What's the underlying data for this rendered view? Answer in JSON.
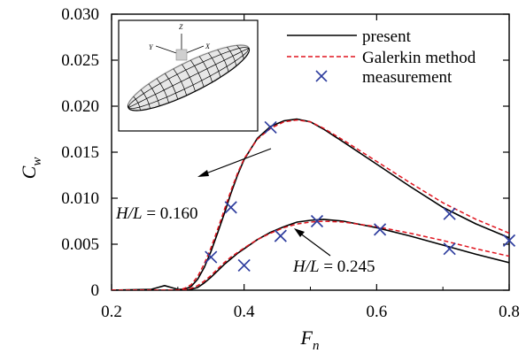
{
  "chart_data": {
    "type": "line",
    "title": "",
    "xlabel": "F",
    "xlabel_sub": "n",
    "ylabel": "C",
    "ylabel_sub": "w",
    "xlim": [
      0.2,
      0.8
    ],
    "ylim": [
      0,
      0.03
    ],
    "x_ticks": [
      "0.2",
      "0.4",
      "0.6",
      "0.8"
    ],
    "y_ticks": [
      "0",
      "0.005",
      "0.010",
      "0.015",
      "0.020",
      "0.025",
      "0.030"
    ],
    "grid": false,
    "legend_position": "top-right",
    "legend": [
      {
        "label": "present",
        "style": "solid",
        "color": "#000000"
      },
      {
        "label": "Galerkin method",
        "style": "dashed",
        "color": "#e0141e"
      },
      {
        "label": "measurement",
        "style": "marker-x",
        "color": "#2e3d9e"
      }
    ],
    "annotations": [
      {
        "text": "H/L = 0.160",
        "italic_part": "H/L",
        "rest": " = 0.160",
        "points_to": "upper curve"
      },
      {
        "text": "H/L = 0.245",
        "italic_part": "H/L",
        "rest": " = 0.245",
        "points_to": "lower curve"
      }
    ],
    "inset": {
      "axis_labels": [
        "Y",
        "Z",
        "X"
      ],
      "description": "hull geometry"
    },
    "series": [
      {
        "name": "present",
        "case": "H/L = 0.160",
        "x": [
          0.2,
          0.26,
          0.27,
          0.28,
          0.29,
          0.3,
          0.31,
          0.32,
          0.33,
          0.34,
          0.35,
          0.36,
          0.37,
          0.38,
          0.39,
          0.4,
          0.42,
          0.44,
          0.46,
          0.48,
          0.5,
          0.52,
          0.55,
          0.6,
          0.65,
          0.7,
          0.75,
          0.8
        ],
        "y": [
          0,
          0.0001,
          0.0003,
          0.0005,
          0.0003,
          0.0001,
          0.0001,
          0.0004,
          0.0012,
          0.0025,
          0.0042,
          0.0062,
          0.0083,
          0.0105,
          0.0125,
          0.0142,
          0.0165,
          0.0178,
          0.0184,
          0.0186,
          0.0183,
          0.0175,
          0.0161,
          0.0137,
          0.0113,
          0.009,
          0.0072,
          0.0057
        ]
      },
      {
        "name": "Galerkin method",
        "case": "H/L = 0.160",
        "x": [
          0.2,
          0.3,
          0.31,
          0.32,
          0.33,
          0.34,
          0.35,
          0.36,
          0.37,
          0.38,
          0.39,
          0.4,
          0.42,
          0.44,
          0.46,
          0.48,
          0.5,
          0.52,
          0.55,
          0.6,
          0.65,
          0.7,
          0.75,
          0.8
        ],
        "y": [
          0,
          0,
          0.0002,
          0.0006,
          0.0015,
          0.0029,
          0.0046,
          0.0066,
          0.0087,
          0.0108,
          0.0127,
          0.0143,
          0.0164,
          0.0176,
          0.0183,
          0.0185,
          0.0183,
          0.0176,
          0.0163,
          0.014,
          0.0117,
          0.0095,
          0.0077,
          0.0062
        ]
      },
      {
        "name": "present",
        "case": "H/L = 0.245",
        "x": [
          0.2,
          0.3,
          0.31,
          0.32,
          0.33,
          0.34,
          0.35,
          0.36,
          0.37,
          0.38,
          0.39,
          0.4,
          0.42,
          0.44,
          0.46,
          0.48,
          0.5,
          0.52,
          0.55,
          0.6,
          0.65,
          0.7,
          0.75,
          0.8
        ],
        "y": [
          0,
          0,
          0,
          0.0001,
          0.0003,
          0.0008,
          0.0014,
          0.0021,
          0.0028,
          0.0034,
          0.004,
          0.0045,
          0.0055,
          0.0063,
          0.0069,
          0.0074,
          0.0076,
          0.0077,
          0.0075,
          0.0068,
          0.0059,
          0.0049,
          0.0039,
          0.003
        ]
      },
      {
        "name": "Galerkin method",
        "case": "H/L = 0.245",
        "x": [
          0.2,
          0.3,
          0.31,
          0.32,
          0.33,
          0.34,
          0.35,
          0.36,
          0.37,
          0.38,
          0.39,
          0.4,
          0.42,
          0.44,
          0.46,
          0.48,
          0.5,
          0.52,
          0.55,
          0.6,
          0.65,
          0.7,
          0.75,
          0.8
        ],
        "y": [
          0,
          0,
          0,
          0.0002,
          0.0005,
          0.001,
          0.0016,
          0.0023,
          0.003,
          0.0036,
          0.0041,
          0.0046,
          0.0055,
          0.0062,
          0.0068,
          0.0072,
          0.0074,
          0.0075,
          0.0074,
          0.0069,
          0.0062,
          0.0054,
          0.0045,
          0.0037
        ]
      },
      {
        "name": "measurement",
        "case": "H/L = 0.160",
        "x": [
          0.35,
          0.38,
          0.44,
          0.71,
          0.8
        ],
        "y": [
          0.0036,
          0.009,
          0.0177,
          0.0083,
          0.0054
        ]
      },
      {
        "name": "measurement",
        "case": "H/L = 0.245",
        "x": [
          0.4,
          0.455,
          0.51,
          0.605,
          0.71
        ],
        "y": [
          0.0027,
          0.0059,
          0.0075,
          0.0066,
          0.0045
        ]
      }
    ]
  }
}
